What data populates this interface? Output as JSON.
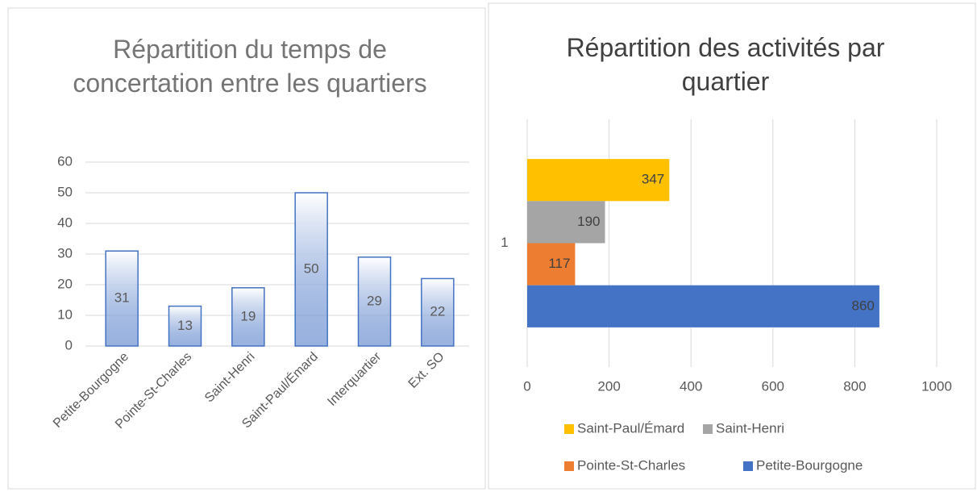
{
  "chart_data": [
    {
      "type": "bar",
      "title": "Répartition du temps de concertation entre les quartiers",
      "categories": [
        "Petite-Bourgogne",
        "Pointe-St-Charles",
        "Saint-Henri",
        "Saint-Paul/Émard",
        "Interquartier",
        "Ext. SO"
      ],
      "values": [
        31,
        13,
        19,
        50,
        29,
        22
      ],
      "color": "#4472c4",
      "ylim": [
        0,
        60
      ],
      "yticks": [
        0,
        10,
        20,
        30,
        40,
        50,
        60
      ],
      "grid": true
    },
    {
      "type": "hbar",
      "title": "Répartition des activités par quartier",
      "categories": [
        "1"
      ],
      "series": [
        {
          "name": "Saint-Paul/Émard",
          "color": "#ffc000",
          "values": [
            347
          ]
        },
        {
          "name": "Saint-Henri",
          "color": "#a5a5a5",
          "values": [
            190
          ]
        },
        {
          "name": "Pointe-St-Charles",
          "color": "#ed7d31",
          "values": [
            117
          ]
        },
        {
          "name": "Petite-Bourgogne",
          "color": "#4472c4",
          "values": [
            860
          ]
        }
      ],
      "xlim": [
        0,
        1000
      ],
      "xticks": [
        0,
        200,
        400,
        600,
        800,
        1000
      ],
      "grid": true,
      "legend": "bottom"
    }
  ]
}
